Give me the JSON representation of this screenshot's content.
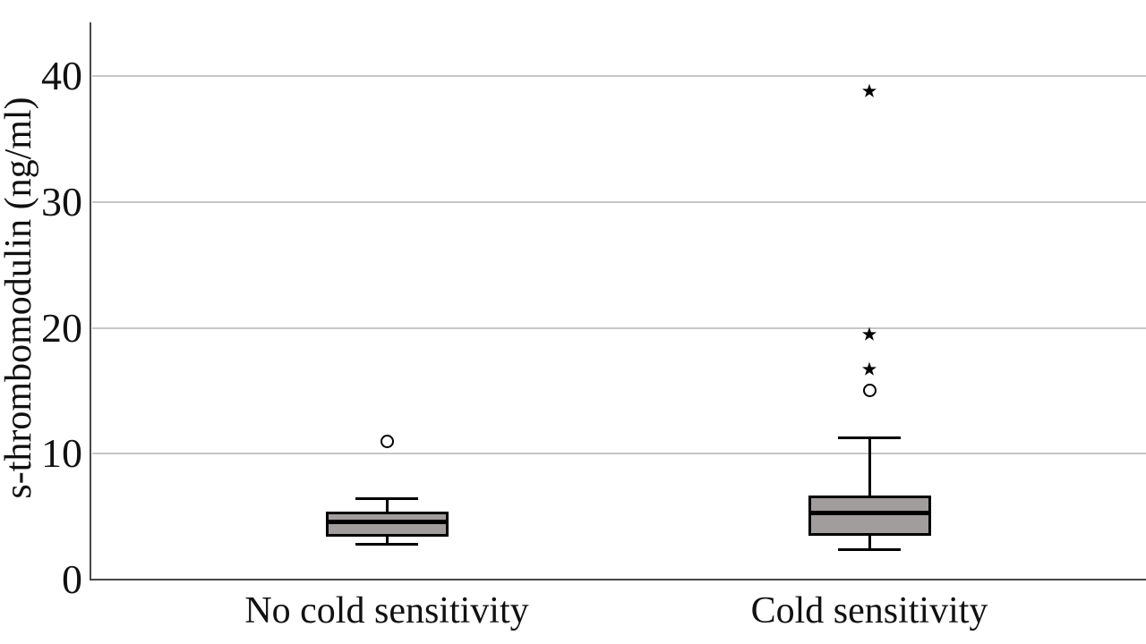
{
  "chart_data": {
    "type": "boxplot",
    "title": "",
    "ylabel": "s-thrombomodulin (ng/ml)",
    "xlabel": "",
    "ylim": [
      0,
      44
    ],
    "yticks": [
      0,
      10,
      20,
      30,
      40
    ],
    "grid": "horizontal-gridlines-at-major-ticks",
    "legend": "none",
    "categories": [
      "No cold sensitivity",
      "Cold sensitivity"
    ],
    "series": [
      {
        "category": "No cold sensitivity",
        "whisker_low": 2.8,
        "q1": 3.4,
        "median": 4.6,
        "q3": 5.4,
        "whisker_high": 6.4,
        "outliers": [
          {
            "value": 11.0,
            "marker": "circle"
          }
        ]
      },
      {
        "category": "Cold sensitivity",
        "whisker_low": 2.4,
        "q1": 3.5,
        "median": 5.3,
        "q3": 6.7,
        "whisker_high": 11.3,
        "outliers": [
          {
            "value": 15.0,
            "marker": "circle"
          },
          {
            "value": 16.7,
            "marker": "star"
          },
          {
            "value": 19.5,
            "marker": "star"
          },
          {
            "value": 38.8,
            "marker": "star"
          }
        ]
      }
    ],
    "marker_legend": {
      "circle": "outlier",
      "star": "extreme-outlier"
    },
    "colors": {
      "box_fill": "#a19d9c",
      "box_stroke": "#000000",
      "median": "#000000",
      "gridline": "#c6c6c6",
      "axis": "#474747",
      "text": "#111111",
      "background": "#ffffff"
    }
  }
}
